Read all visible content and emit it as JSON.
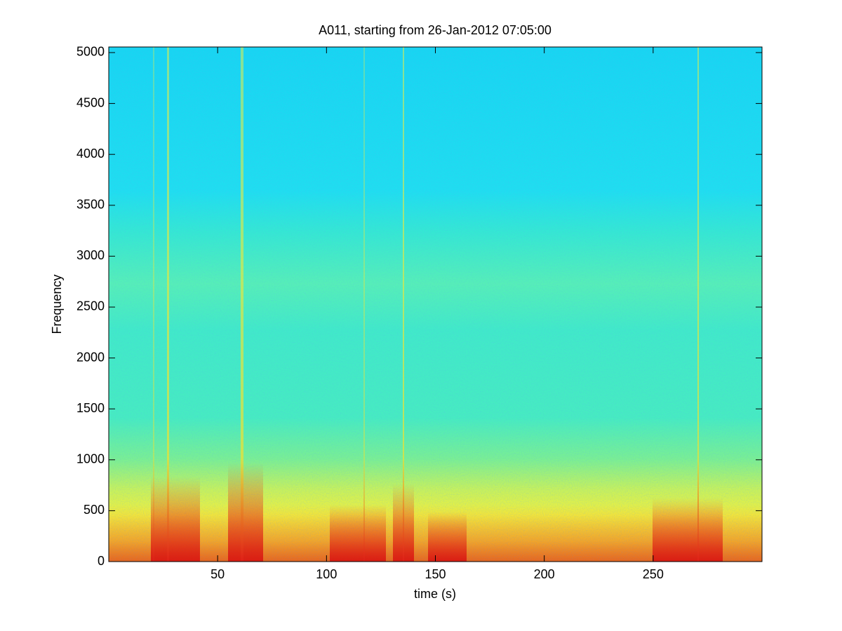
{
  "chart_data": {
    "type": "spectrogram",
    "title": "A011, starting from 26-Jan-2012 07:05:00",
    "x_label": "time (s)",
    "y_label": "Frequency",
    "xlim": [
      0,
      300
    ],
    "xticks": [
      50,
      100,
      150,
      200,
      250
    ],
    "ylim": [
      0,
      5055
    ],
    "yticks": [
      0,
      500,
      1000,
      1500,
      2000,
      2500,
      3000,
      3500,
      4000,
      4500,
      5000
    ]
  }
}
